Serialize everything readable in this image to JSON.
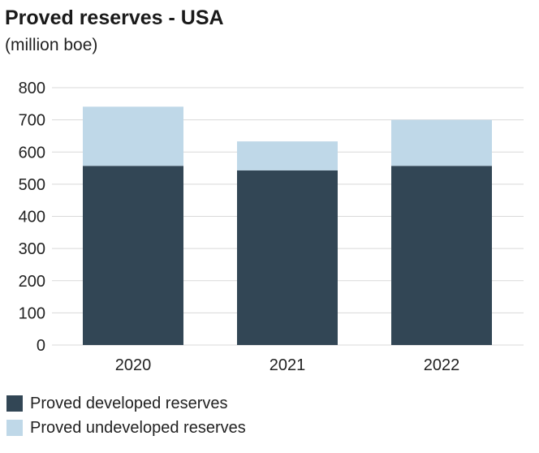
{
  "colors": {
    "developed": "#324655",
    "undeveloped": "#bfd8e8",
    "grid": "#d9d9d9",
    "axis_text": "#222222"
  },
  "chart_data": {
    "type": "bar",
    "stacked": true,
    "title": "Proved reserves - USA",
    "subtitle": "(million boe)",
    "categories": [
      "2020",
      "2021",
      "2022"
    ],
    "series": [
      {
        "name": "Proved developed reserves",
        "values": [
          557,
          543,
          557
        ]
      },
      {
        "name": "Proved undeveloped reserves",
        "values": [
          184,
          90,
          143
        ]
      }
    ],
    "ylim": [
      0,
      800
    ],
    "yticks": [
      0,
      100,
      200,
      300,
      400,
      500,
      600,
      700,
      800
    ],
    "grid": true,
    "legend_position": "bottom-left"
  }
}
